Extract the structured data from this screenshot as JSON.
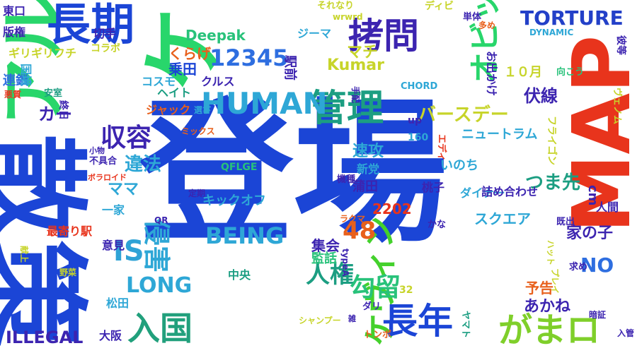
{
  "words": [
    {
      "text": "登場",
      "color": "#1b45d6"
    },
    {
      "text": "ケミスト",
      "color": "#28d66b"
    },
    {
      "text": "散策",
      "color": "#1b45d6"
    },
    {
      "text": "MAP",
      "color": "#e8341c"
    },
    {
      "text": "アル",
      "color": "#28d66b"
    },
    {
      "text": "長期",
      "color": "#1b45d6"
    },
    {
      "text": "管理",
      "color": "#1c9e82"
    },
    {
      "text": "拷問",
      "color": "#3c24b0"
    },
    {
      "text": "HUMAN",
      "color": "#2ea7d6"
    },
    {
      "text": "12345",
      "color": "#2e6ee0"
    },
    {
      "text": "ケヴィン",
      "color": "#44d12c"
    },
    {
      "text": "入国",
      "color": "#21a07c"
    },
    {
      "text": "長年",
      "color": "#1b45d6"
    },
    {
      "text": "がまロ",
      "color": "#7fcf2a"
    },
    {
      "text": "TORTURE",
      "color": "#2340c8"
    },
    {
      "text": "オビッツ",
      "color": "#28d66b"
    },
    {
      "text": "BEING",
      "color": "#2ea7d6"
    },
    {
      "text": "IS",
      "color": "#2fa3d6"
    },
    {
      "text": "侵害",
      "color": "#2ea7d6"
    },
    {
      "text": "収容",
      "color": "#3c24b0"
    },
    {
      "text": "人権",
      "color": "#1c9e82"
    },
    {
      "text": "勾留",
      "color": "#28c27a"
    },
    {
      "text": "48",
      "color": "#e8601c"
    },
    {
      "text": "LONG",
      "color": "#2ea7d6"
    },
    {
      "text": "NO",
      "color": "#2e6ee0"
    },
    {
      "text": "ILLEGAL",
      "color": "#3c24b0"
    },
    {
      "text": "つま先",
      "color": "#1c9e82"
    },
    {
      "text": "家の子",
      "color": "#3c24b0"
    },
    {
      "text": "伏線",
      "color": "#3c24b0"
    },
    {
      "text": "バースデー",
      "color": "#c7d42a"
    },
    {
      "text": "Kumar",
      "color": "#c7d42a"
    },
    {
      "text": "Deepak",
      "color": "#28c27a"
    },
    {
      "text": "違法",
      "color": "#2ea7d6"
    },
    {
      "text": "ママ",
      "color": "#2ea7d6"
    },
    {
      "text": "あかね",
      "color": "#3c24b0"
    },
    {
      "text": "予告",
      "color": "#e8601c"
    },
    {
      "text": "くらげ",
      "color": "#e8601c"
    },
    {
      "text": "マチ",
      "color": "#c7d42a"
    },
    {
      "text": "乗田",
      "color": "#1b45d6"
    },
    {
      "text": "カー",
      "color": "#3c24b0"
    },
    {
      "text": "ニュートラム",
      "color": "#2ea7d6"
    },
    {
      "text": "スクエア",
      "color": "#2ea7d6"
    },
    {
      "text": "キックオフ",
      "color": "#2ea7d6"
    },
    {
      "text": "コスモ",
      "color": "#2ea7d6"
    },
    {
      "text": "ヘイト",
      "color": "#1c9e82"
    },
    {
      "text": "ジャック",
      "color": "#e8601c"
    },
    {
      "text": "クルス",
      "color": "#3c24b0"
    },
    {
      "text": "ジーマ",
      "color": "#2ea7d6"
    },
    {
      "text": "ギリギリフチ",
      "color": "#c7d42a"
    },
    {
      "text": "駅前",
      "color": "#3c24b0"
    },
    {
      "text": "速攻",
      "color": "#2ea7d6"
    },
    {
      "text": "いのち",
      "color": "#2ea7d6"
    },
    {
      "text": "集会",
      "color": "#3c24b0"
    },
    {
      "text": "監話",
      "color": "#28c27a"
    },
    {
      "text": "ダイナー",
      "color": "#2ea7d6"
    },
    {
      "text": "詰め合わせ",
      "color": "#3c24b0"
    },
    {
      "text": "人間",
      "color": "#3c24b0"
    },
    {
      "text": "cm",
      "color": "#3c24b0"
    },
    {
      "text": "2202",
      "color": "#e8341c"
    },
    {
      "text": "蒲田",
      "color": "#3c24b0"
    },
    {
      "text": "桃子",
      "color": "#3c24b0"
    },
    {
      "text": "新党",
      "color": "#2ea7d6"
    },
    {
      "text": "中央",
      "color": "#1c9e82"
    },
    {
      "text": "大阪",
      "color": "#3c24b0"
    },
    {
      "text": "松田",
      "color": "#2ea7d6"
    },
    {
      "text": "意見",
      "color": "#3c24b0"
    },
    {
      "text": "一家",
      "color": "#2ea7d6"
    },
    {
      "text": "最寄り駅",
      "color": "#e8341c"
    },
    {
      "text": "連鎖",
      "color": "#2e6ee0"
    },
    {
      "text": "国境",
      "color": "#2ea7d6"
    },
    {
      "text": "版権",
      "color": "#3c24b0"
    },
    {
      "text": "東口",
      "color": "#3c24b0"
    },
    {
      "text": "切手",
      "color": "#3c24b0"
    },
    {
      "text": "コラボ",
      "color": "#c7d42a"
    },
    {
      "text": "それなり",
      "color": "#c7d42a"
    },
    {
      "text": "wrwrd",
      "color": "#c7d42a"
    },
    {
      "text": "ディビ",
      "color": "#c7d42a"
    },
    {
      "text": "単体",
      "color": "#3c24b0"
    },
    {
      "text": "多め",
      "color": "#e8601c"
    },
    {
      "text": "DYNAMIC",
      "color": "#2ea7d6"
    },
    {
      "text": "彼等",
      "color": "#3c24b0"
    },
    {
      "text": "向こう",
      "color": "#28c27a"
    },
    {
      "text": "CHORD",
      "color": "#2ea7d6"
    },
    {
      "text": "up",
      "color": "#3c24b0"
    },
    {
      "text": "160",
      "color": "#2ea7d6"
    },
    {
      "text": "QFLGE",
      "color": "#28c27a"
    },
    {
      "text": "QR",
      "color": "#3c24b0"
    },
    {
      "text": "定期",
      "color": "#3c24b0"
    },
    {
      "text": "既出",
      "color": "#3c24b0"
    },
    {
      "text": "かな",
      "color": "#3c24b0"
    },
    {
      "text": "ラクマ",
      "color": "#e8601c"
    },
    {
      "text": "求め",
      "color": "#3c24b0"
    },
    {
      "text": "暗証",
      "color": "#3c24b0"
    },
    {
      "text": "入管",
      "color": "#3c24b0"
    },
    {
      "text": "トンボ",
      "color": "#e8601c"
    },
    {
      "text": "シャンプー",
      "color": "#c7d42a"
    },
    {
      "text": "ダリ",
      "color": "#3c24b0"
    },
    {
      "text": "野菜",
      "color": "#c7d42a"
    },
    {
      "text": "不具合",
      "color": "#3c24b0"
    },
    {
      "text": "ボラロイド",
      "color": "#e8341c"
    },
    {
      "text": "ミックス",
      "color": "#e8601c"
    },
    {
      "text": "小物",
      "color": "#3c24b0"
    },
    {
      "text": "安室",
      "color": "#1c9e82"
    },
    {
      "text": "悪質",
      "color": "#e8341c"
    },
    {
      "text": "選び",
      "color": "#2ea7d6"
    },
    {
      "text": "手配",
      "color": "#3c24b0"
    },
    {
      "text": "お出かけ",
      "color": "#3c24b0"
    },
    {
      "text": "１０月",
      "color": "#c7d42a"
    },
    {
      "text": "ヴェノム",
      "color": "#c7d42a"
    },
    {
      "text": "フライゴン",
      "color": "#c7d42a"
    },
    {
      "text": "エディ",
      "color": "#e8341c"
    },
    {
      "text": "機種",
      "color": "#3c24b0"
    },
    {
      "text": "プレイ",
      "color": "#c7d42a"
    },
    {
      "text": "ハット",
      "color": "#c7d42a"
    },
    {
      "text": "ヤマト",
      "color": "#1c9e82"
    },
    {
      "text": "32",
      "color": "#c7d42a"
    },
    {
      "text": "typeA",
      "color": "#3c24b0"
    },
    {
      "text": "献上",
      "color": "#c7d42a"
    },
    {
      "text": "雑",
      "color": "#3c24b0"
    },
    {
      "text": "終日",
      "color": "#3c24b0"
    }
  ]
}
